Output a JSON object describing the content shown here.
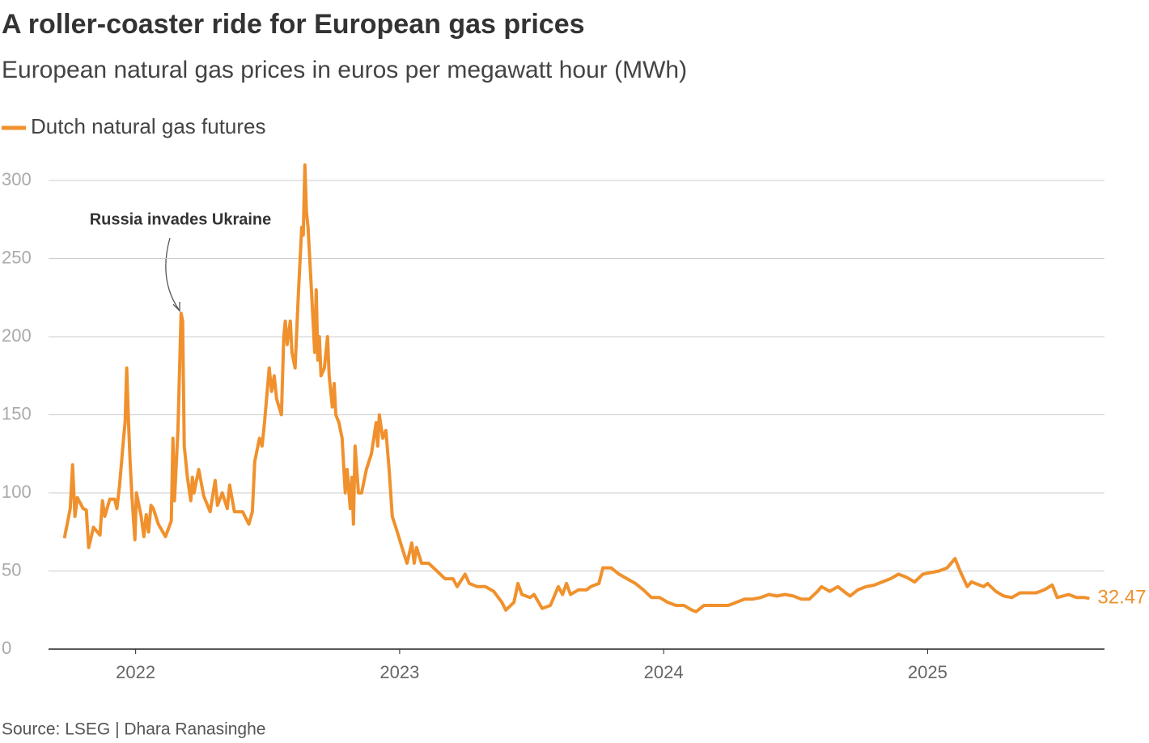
{
  "chart_data": {
    "type": "line",
    "title": "A roller-coaster ride for European gas prices",
    "subtitle": "European natural gas prices in euros per megawatt hour (MWh)",
    "source": "Source: LSEG | Dhara Ranasinghe",
    "annotation": "Russia invades Ukraine",
    "xlim": [
      2021.67,
      2025.67
    ],
    "xticks": [
      2022,
      2023,
      2024,
      2025
    ],
    "ylim": [
      0,
      320
    ],
    "yticks": [
      0,
      50,
      100,
      150,
      200,
      250,
      300
    ],
    "grid": true,
    "x": [
      2021.73,
      2021.752,
      2021.761,
      2021.77,
      2021.779,
      2021.801,
      2021.813,
      2021.822,
      2021.84,
      2021.865,
      2021.874,
      2021.883,
      2021.902,
      2021.92,
      2021.929,
      2021.939,
      2021.954,
      2021.96,
      2021.966,
      2021.972,
      2021.979,
      2021.985,
      2021.997,
      2022.003,
      2022.021,
      2022.031,
      2022.04,
      2022.049,
      2022.058,
      2022.067,
      2022.086,
      2022.113,
      2022.135,
      2022.141,
      2022.147,
      2022.16,
      2022.172,
      2022.178,
      2022.184,
      2022.196,
      2022.209,
      2022.215,
      2022.221,
      2022.239,
      2022.258,
      2022.282,
      2022.301,
      2022.31,
      2022.328,
      2022.347,
      2022.356,
      2022.374,
      2022.405,
      2022.429,
      2022.442,
      2022.451,
      2022.469,
      2022.479,
      2022.488,
      2022.506,
      2022.515,
      2022.525,
      2022.534,
      2022.552,
      2022.561,
      2022.567,
      2022.574,
      2022.586,
      2022.592,
      2022.604,
      2022.617,
      2022.629,
      2022.635,
      2022.641,
      2022.647,
      2022.653,
      2022.666,
      2022.678,
      2022.684,
      2022.69,
      2022.696,
      2022.702,
      2022.715,
      2022.727,
      2022.733,
      2022.745,
      2022.752,
      2022.758,
      2022.77,
      2022.782,
      2022.794,
      2022.801,
      2022.813,
      2022.819,
      2022.825,
      2022.831,
      2022.844,
      2022.856,
      2022.874,
      2022.893,
      2022.911,
      2022.917,
      2022.923,
      2022.936,
      2022.948,
      2022.96,
      2022.972,
      2022.991,
      2023.009,
      2023.028,
      2023.046,
      2023.055,
      2023.064,
      2023.083,
      2023.11,
      2023.141,
      2023.172,
      2023.202,
      2023.218,
      2023.248,
      2023.264,
      2023.294,
      2023.325,
      2023.356,
      2023.387,
      2023.402,
      2023.433,
      2023.448,
      2023.463,
      2023.494,
      2023.509,
      2023.54,
      2023.571,
      2023.601,
      2023.617,
      2023.632,
      2023.647,
      2023.678,
      2023.709,
      2023.724,
      2023.755,
      2023.77,
      2023.801,
      2023.831,
      2023.862,
      2023.893,
      2023.923,
      2023.954,
      2023.985,
      2024.015,
      2024.046,
      2024.077,
      2024.107,
      2024.123,
      2024.153,
      2024.184,
      2024.215,
      2024.245,
      2024.276,
      2024.307,
      2024.337,
      2024.368,
      2024.399,
      2024.429,
      2024.46,
      2024.491,
      2024.521,
      2024.552,
      2024.583,
      2024.598,
      2024.629,
      2024.66,
      2024.69,
      2024.706,
      2024.736,
      2024.767,
      2024.798,
      2024.828,
      2024.859,
      2024.89,
      2024.92,
      2024.951,
      2024.982,
      2025.012,
      2025.043,
      2025.074,
      2025.104,
      2025.123,
      2025.15,
      2025.166,
      2025.212,
      2025.227,
      2025.258,
      2025.288,
      2025.319,
      2025.35,
      2025.38,
      2025.411,
      2025.442,
      2025.472,
      2025.491,
      2025.534,
      2025.564,
      2025.595,
      2025.613
    ],
    "series": [
      {
        "name": "Dutch natural gas futures",
        "color": "#f0912d",
        "values": [
          71,
          90,
          118,
          85,
          97,
          90,
          89,
          65,
          78,
          73,
          95,
          85,
          96,
          96,
          90,
          105,
          135,
          145,
          180,
          150,
          120,
          100,
          70,
          100,
          85,
          72,
          86,
          75,
          92,
          90,
          80,
          72,
          82,
          135,
          95,
          140,
          215,
          210,
          130,
          110,
          95,
          110,
          100,
          115,
          98,
          88,
          108,
          92,
          100,
          90,
          105,
          88,
          88,
          80,
          88,
          120,
          135,
          130,
          145,
          180,
          165,
          175,
          160,
          150,
          200,
          210,
          195,
          210,
          190,
          180,
          230,
          270,
          265,
          310,
          280,
          270,
          230,
          190,
          230,
          185,
          200,
          175,
          180,
          200,
          175,
          155,
          170,
          150,
          145,
          135,
          100,
          115,
          90,
          110,
          80,
          130,
          100,
          100,
          115,
          125,
          145,
          130,
          150,
          135,
          140,
          115,
          85,
          75,
          65,
          55,
          68,
          55,
          65,
          55,
          55,
          50,
          45,
          45,
          40,
          48,
          42,
          40,
          40,
          37,
          30,
          25,
          30,
          42,
          35,
          33,
          35,
          26,
          28,
          40,
          35,
          42,
          35,
          38,
          38,
          40,
          42,
          52,
          52,
          48,
          45,
          42,
          38,
          33,
          33,
          30,
          28,
          28,
          25,
          24,
          28,
          28,
          28,
          28,
          30,
          32,
          32,
          33,
          35,
          34,
          35,
          34,
          32,
          32,
          37,
          40,
          37,
          40,
          36,
          34,
          38,
          40,
          41,
          43,
          45,
          48,
          46,
          43,
          48,
          49,
          50,
          52,
          58,
          50,
          40,
          43,
          40,
          42,
          37,
          34,
          33,
          36,
          36,
          36,
          38,
          41,
          33,
          35,
          33,
          33,
          32.47
        ]
      }
    ]
  }
}
